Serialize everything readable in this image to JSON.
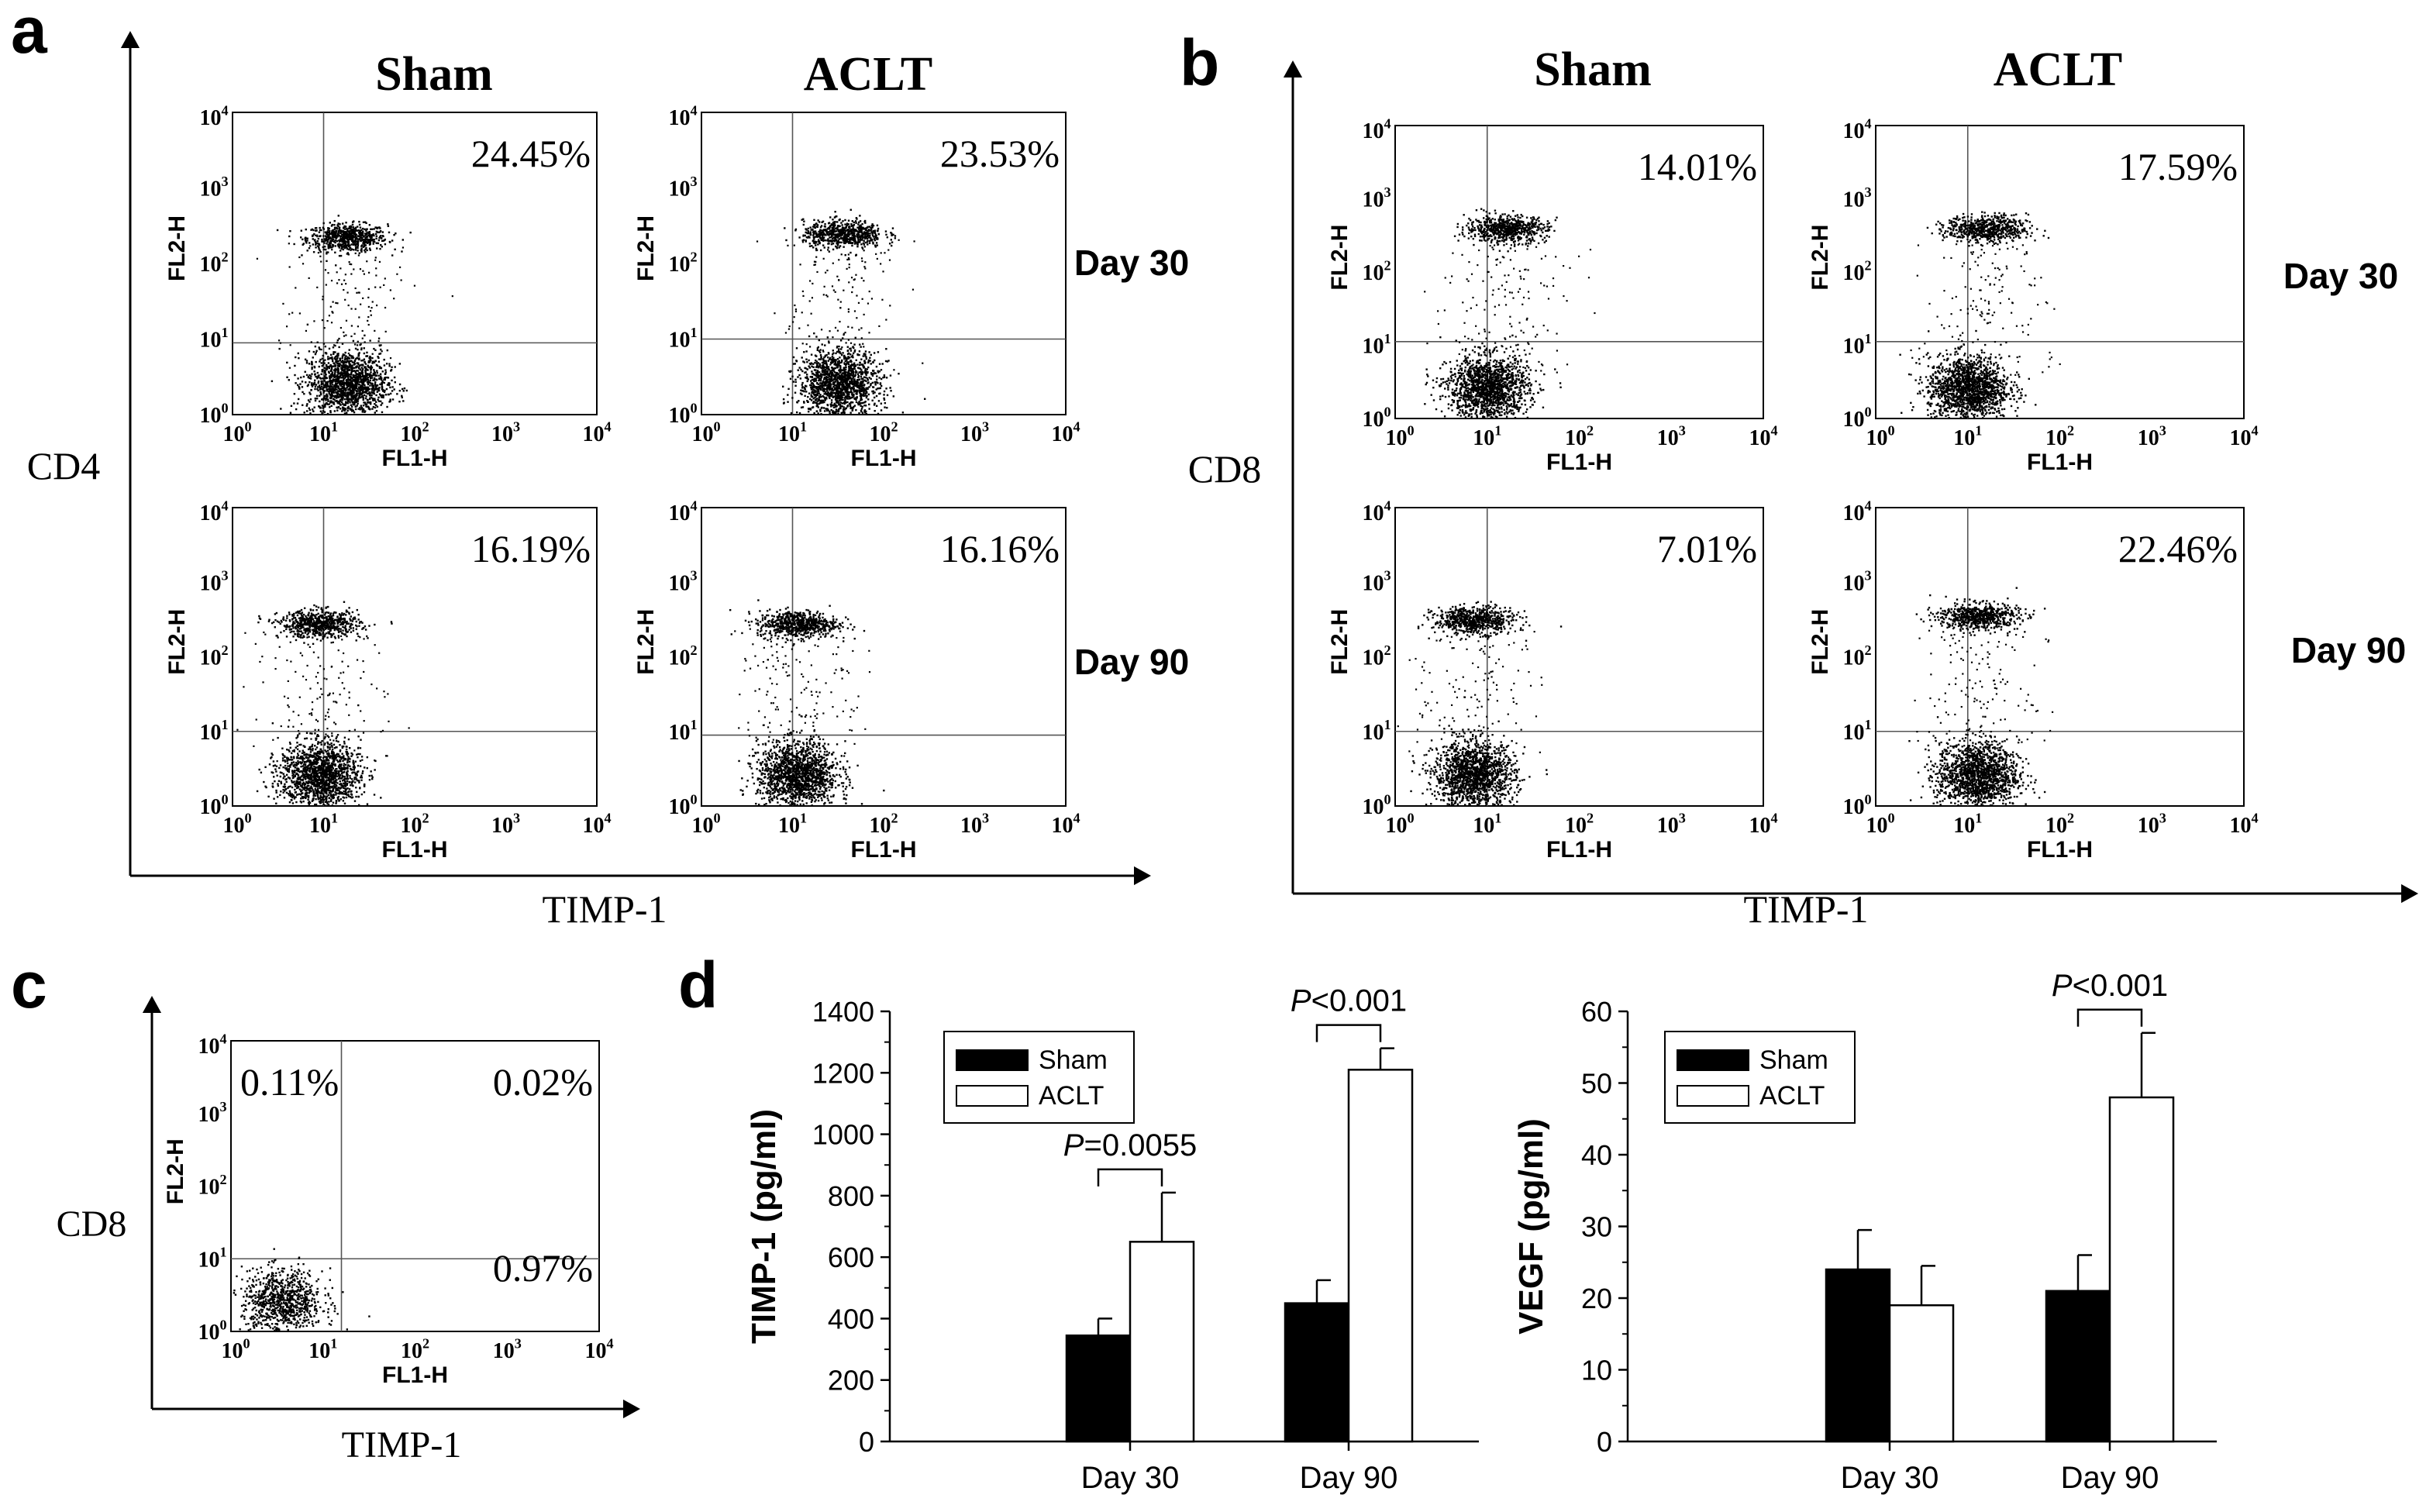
{
  "panel_letters": [
    "a",
    "b",
    "c",
    "d"
  ],
  "flow": {
    "group_headers": [
      "Sham",
      "ACLT"
    ],
    "row_labels": [
      "Day 30",
      "Day 90"
    ],
    "x_channel": "FL1-H",
    "y_channel": "FL2-H",
    "tick_labels": [
      "10^0",
      "10^1",
      "10^2",
      "10^3",
      "10^4"
    ],
    "colors": {
      "dots": "#000000",
      "axes": "#000000",
      "gates": "#555555"
    },
    "panels": [
      {
        "id": "a",
        "y_marker": "CD4",
        "x_marker": "TIMP-1",
        "plots": [
          {
            "group": "Sham",
            "day": "Day 30",
            "percent": "24.45%",
            "pos_x": 1.25,
            "pos_y": 2.35,
            "neg_x": 1.25,
            "gate_x": 1.0,
            "gate_y": 0.95
          },
          {
            "group": "ACLT",
            "day": "Day 30",
            "percent": "23.53%",
            "pos_x": 1.55,
            "pos_y": 2.4,
            "neg_x": 1.5,
            "gate_x": 1.0,
            "gate_y": 1.0
          },
          {
            "group": "Sham",
            "day": "Day 90",
            "percent": "16.19%",
            "pos_x": 0.95,
            "pos_y": 2.45,
            "neg_x": 0.95,
            "gate_x": 1.0,
            "gate_y": 1.0
          },
          {
            "group": "ACLT",
            "day": "Day 90",
            "percent": "16.16%",
            "pos_x": 1.05,
            "pos_y": 2.45,
            "neg_x": 1.05,
            "gate_x": 1.0,
            "gate_y": 0.95
          }
        ]
      },
      {
        "id": "b",
        "y_marker": "CD8",
        "x_marker": "TIMP-1",
        "plots": [
          {
            "group": "Sham",
            "day": "Day 30",
            "percent": "14.01%",
            "pos_x": 1.2,
            "pos_y": 2.6,
            "neg_x": 1.0,
            "gate_x": 1.0,
            "gate_y": 1.05
          },
          {
            "group": "ACLT",
            "day": "Day 30",
            "percent": "17.59%",
            "pos_x": 1.2,
            "pos_y": 2.6,
            "neg_x": 1.0,
            "gate_x": 1.0,
            "gate_y": 1.05
          },
          {
            "group": "Sham",
            "day": "Day 90",
            "percent": "7.01%",
            "pos_x": 0.85,
            "pos_y": 2.5,
            "neg_x": 0.85,
            "gate_x": 1.0,
            "gate_y": 1.0
          },
          {
            "group": "ACLT",
            "day": "Day 90",
            "percent": "22.46%",
            "pos_x": 1.1,
            "pos_y": 2.55,
            "neg_x": 1.1,
            "gate_x": 1.0,
            "gate_y": 1.0
          }
        ]
      },
      {
        "id": "c",
        "y_marker": "CD8",
        "x_marker": "TIMP-1",
        "plots": [
          {
            "group": "",
            "day": "",
            "percents": [
              "0.11%",
              "0.02%",
              "0.97%"
            ],
            "neg_x": 0.55,
            "gate_x": 1.2,
            "gate_y": 1.0
          }
        ]
      }
    ]
  },
  "chart_data": [
    {
      "type": "bar",
      "title": "",
      "xlabel": "",
      "ylabel": "TIMP-1 (pg/ml)",
      "categories": [
        "Day 30",
        "Day 90"
      ],
      "ylim": [
        0,
        1400
      ],
      "yticks": [
        0,
        200,
        400,
        600,
        800,
        1000,
        1200,
        1400
      ],
      "series": [
        {
          "name": "Sham",
          "values": [
            345,
            450
          ],
          "errors": [
            55,
            75
          ],
          "color": "#000000"
        },
        {
          "name": "ACLT",
          "values": [
            650,
            1210
          ],
          "errors": [
            160,
            70
          ],
          "color": "#ffffff"
        }
      ],
      "annotations": [
        {
          "category": "Day 30",
          "p_prefix": "P",
          "p_rest": "=0.0055"
        },
        {
          "category": "Day 90",
          "p_prefix": "P",
          "p_rest": "<0.001"
        }
      ],
      "legend": "top-left"
    },
    {
      "type": "bar",
      "title": "",
      "xlabel": "",
      "ylabel": "VEGF (pg/ml)",
      "categories": [
        "Day 30",
        "Day 90"
      ],
      "ylim": [
        0,
        60
      ],
      "yticks": [
        0,
        10,
        20,
        30,
        40,
        50,
        60
      ],
      "series": [
        {
          "name": "Sham",
          "values": [
            24,
            21
          ],
          "errors": [
            5.5,
            5
          ],
          "color": "#000000"
        },
        {
          "name": "ACLT",
          "values": [
            19,
            48
          ],
          "errors": [
            5.5,
            9
          ],
          "color": "#ffffff"
        }
      ],
      "annotations": [
        {
          "category": "Day 90",
          "p_prefix": "P",
          "p_rest": "<0.001"
        }
      ],
      "legend": "top-left"
    }
  ]
}
